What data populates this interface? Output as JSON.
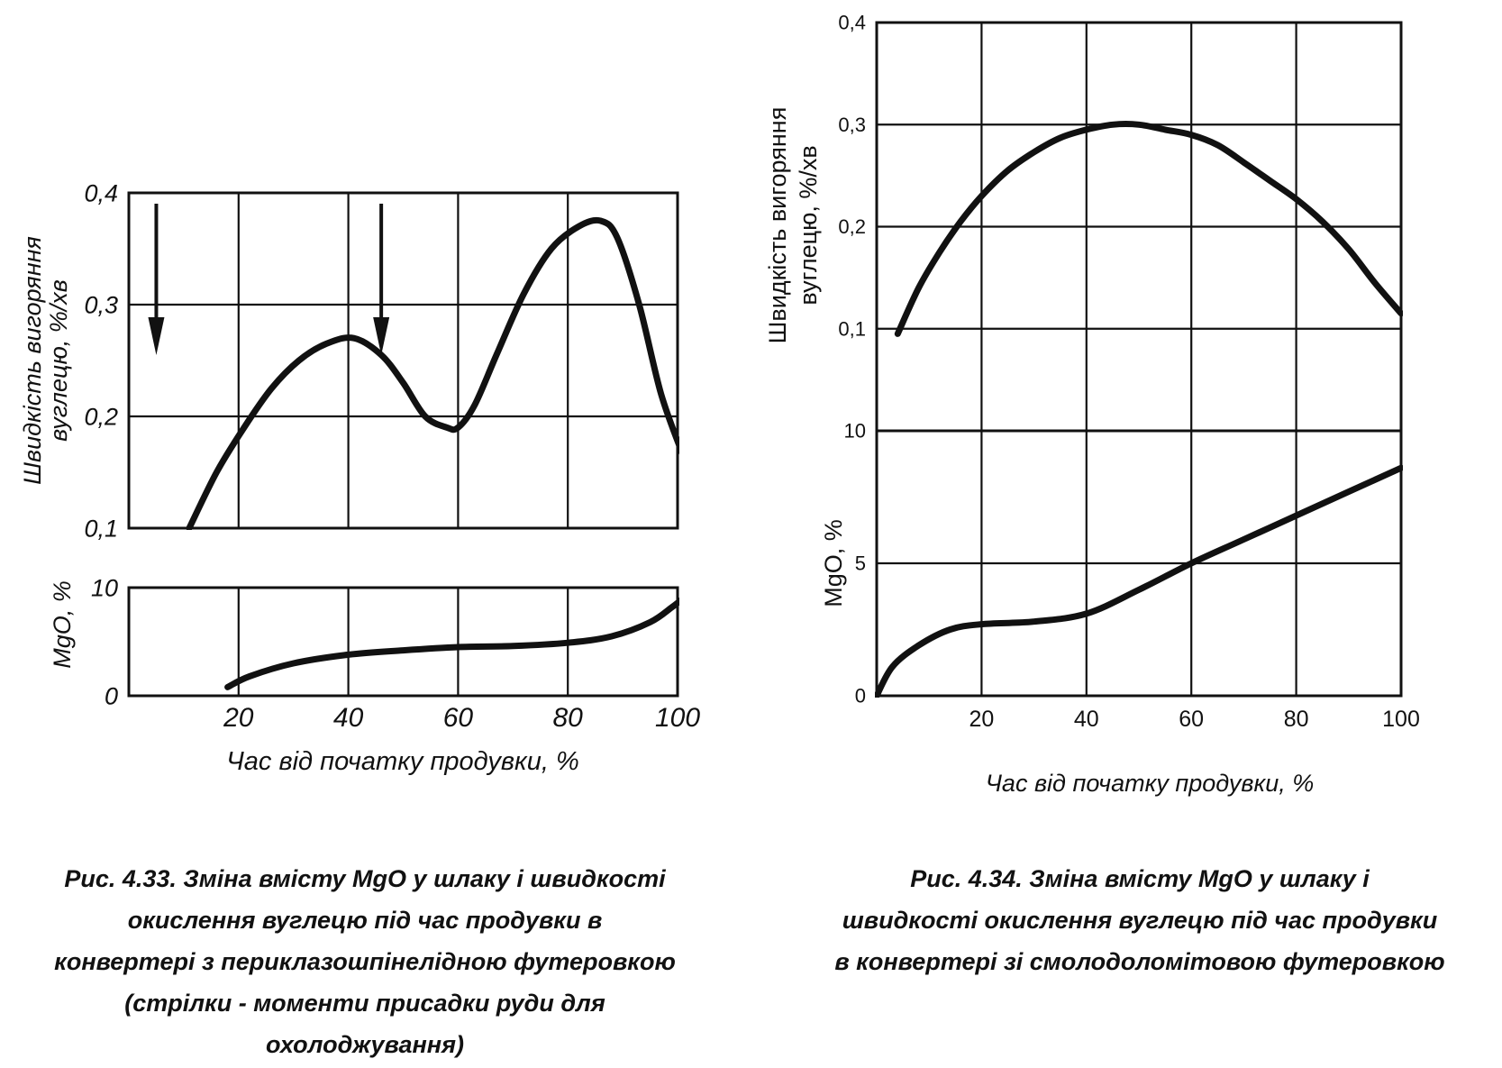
{
  "figure_left": {
    "xlabel": "Час від початку продувки, %",
    "caption_lines": [
      "Рис. 4.33. Зміна вмісту MgO у шлаку і швидкості",
      "окислення вуглецю під час продувки в",
      "конвертері з периклазошпінелідною футеровкою",
      "(стрілки - моменти присадки руди для",
      "охолоджування)"
    ]
  },
  "figure_right": {
    "xlabel": "Час від початку продувки, %",
    "caption_lines": [
      "Рис. 4.34. Зміна вмісту MgO у шлаку і",
      "швидкості окислення вуглецю під час продувки",
      "в конвертері зі смолодоломітовою футеровкою"
    ]
  },
  "chart_data": [
    {
      "type": "line",
      "panel": "fig-4.33 carbon rate",
      "ylabel_lines": [
        "Швидкість вигоряння",
        "вуглецю, %/хв"
      ],
      "xlim": [
        0,
        100
      ],
      "ylim": [
        0.1,
        0.4
      ],
      "x_ticks": [
        20,
        40,
        60,
        80,
        100
      ],
      "y_ticks": [
        0.1,
        0.2,
        0.3,
        0.4
      ],
      "y_tick_labels": [
        "0,1",
        "0,2",
        "0,3",
        "0,4"
      ],
      "grid": true,
      "x": [
        11,
        16,
        21,
        26,
        31,
        36,
        41,
        46,
        50,
        54,
        58,
        60,
        63,
        67,
        72,
        77,
        82,
        86,
        89,
        93,
        97,
        101
      ],
      "y": [
        0.1,
        0.15,
        0.19,
        0.225,
        0.25,
        0.265,
        0.27,
        0.255,
        0.23,
        0.2,
        0.19,
        0.19,
        0.21,
        0.255,
        0.31,
        0.35,
        0.37,
        0.375,
        0.36,
        0.3,
        0.22,
        0.165
      ],
      "arrows_x": [
        5,
        46
      ]
    },
    {
      "type": "line",
      "panel": "fig-4.33 MgO",
      "ylabel": "MgO, %",
      "xlim": [
        0,
        100
      ],
      "ylim": [
        0,
        10
      ],
      "x_ticks": [
        20,
        40,
        60,
        80,
        100
      ],
      "x_tick_labels": [
        "20",
        "40",
        "60",
        "80",
        "100"
      ],
      "y_ticks": [
        0,
        10
      ],
      "y_tick_labels": [
        "0",
        "10"
      ],
      "grid": true,
      "x": [
        18,
        22,
        30,
        40,
        50,
        60,
        70,
        80,
        88,
        95,
        99,
        101
      ],
      "y": [
        0.8,
        1.8,
        3.0,
        3.8,
        4.2,
        4.5,
        4.6,
        4.9,
        5.5,
        6.8,
        8.2,
        9.0
      ]
    },
    {
      "type": "line",
      "panel": "fig-4.34 carbon rate",
      "ylabel_lines": [
        "Швидкість вигоряння",
        "вуглецю, %/хв"
      ],
      "xlim": [
        0,
        100
      ],
      "ylim": [
        0,
        0.4
      ],
      "x_ticks": [
        20,
        40,
        60,
        80,
        100
      ],
      "y_ticks": [
        0.1,
        0.2,
        0.3,
        0.4
      ],
      "y_tick_labels": [
        "0,1",
        "0,2",
        "0,3",
        "0,4"
      ],
      "grid": true,
      "x": [
        4,
        8,
        12,
        16,
        20,
        25,
        30,
        35,
        40,
        45,
        50,
        55,
        60,
        65,
        70,
        75,
        80,
        85,
        90,
        95,
        100
      ],
      "y": [
        0.095,
        0.14,
        0.175,
        0.205,
        0.23,
        0.255,
        0.273,
        0.287,
        0.295,
        0.3,
        0.3,
        0.295,
        0.29,
        0.28,
        0.263,
        0.245,
        0.227,
        0.205,
        0.178,
        0.145,
        0.115
      ]
    },
    {
      "type": "line",
      "panel": "fig-4.34 MgO",
      "ylabel": "MgO, %",
      "xlim": [
        0,
        100
      ],
      "ylim": [
        0,
        10
      ],
      "x_ticks": [
        20,
        40,
        60,
        80,
        100
      ],
      "x_tick_labels": [
        "20",
        "40",
        "60",
        "80",
        "100"
      ],
      "y_ticks": [
        0,
        5,
        10
      ],
      "y_tick_labels": [
        "0",
        "5",
        "10"
      ],
      "grid": true,
      "x": [
        0,
        3,
        8,
        14,
        20,
        30,
        40,
        50,
        60,
        70,
        80,
        90,
        100
      ],
      "y": [
        0,
        1.1,
        1.9,
        2.5,
        2.7,
        2.8,
        3.1,
        4.0,
        5.0,
        5.9,
        6.8,
        7.7,
        8.6
      ]
    }
  ]
}
